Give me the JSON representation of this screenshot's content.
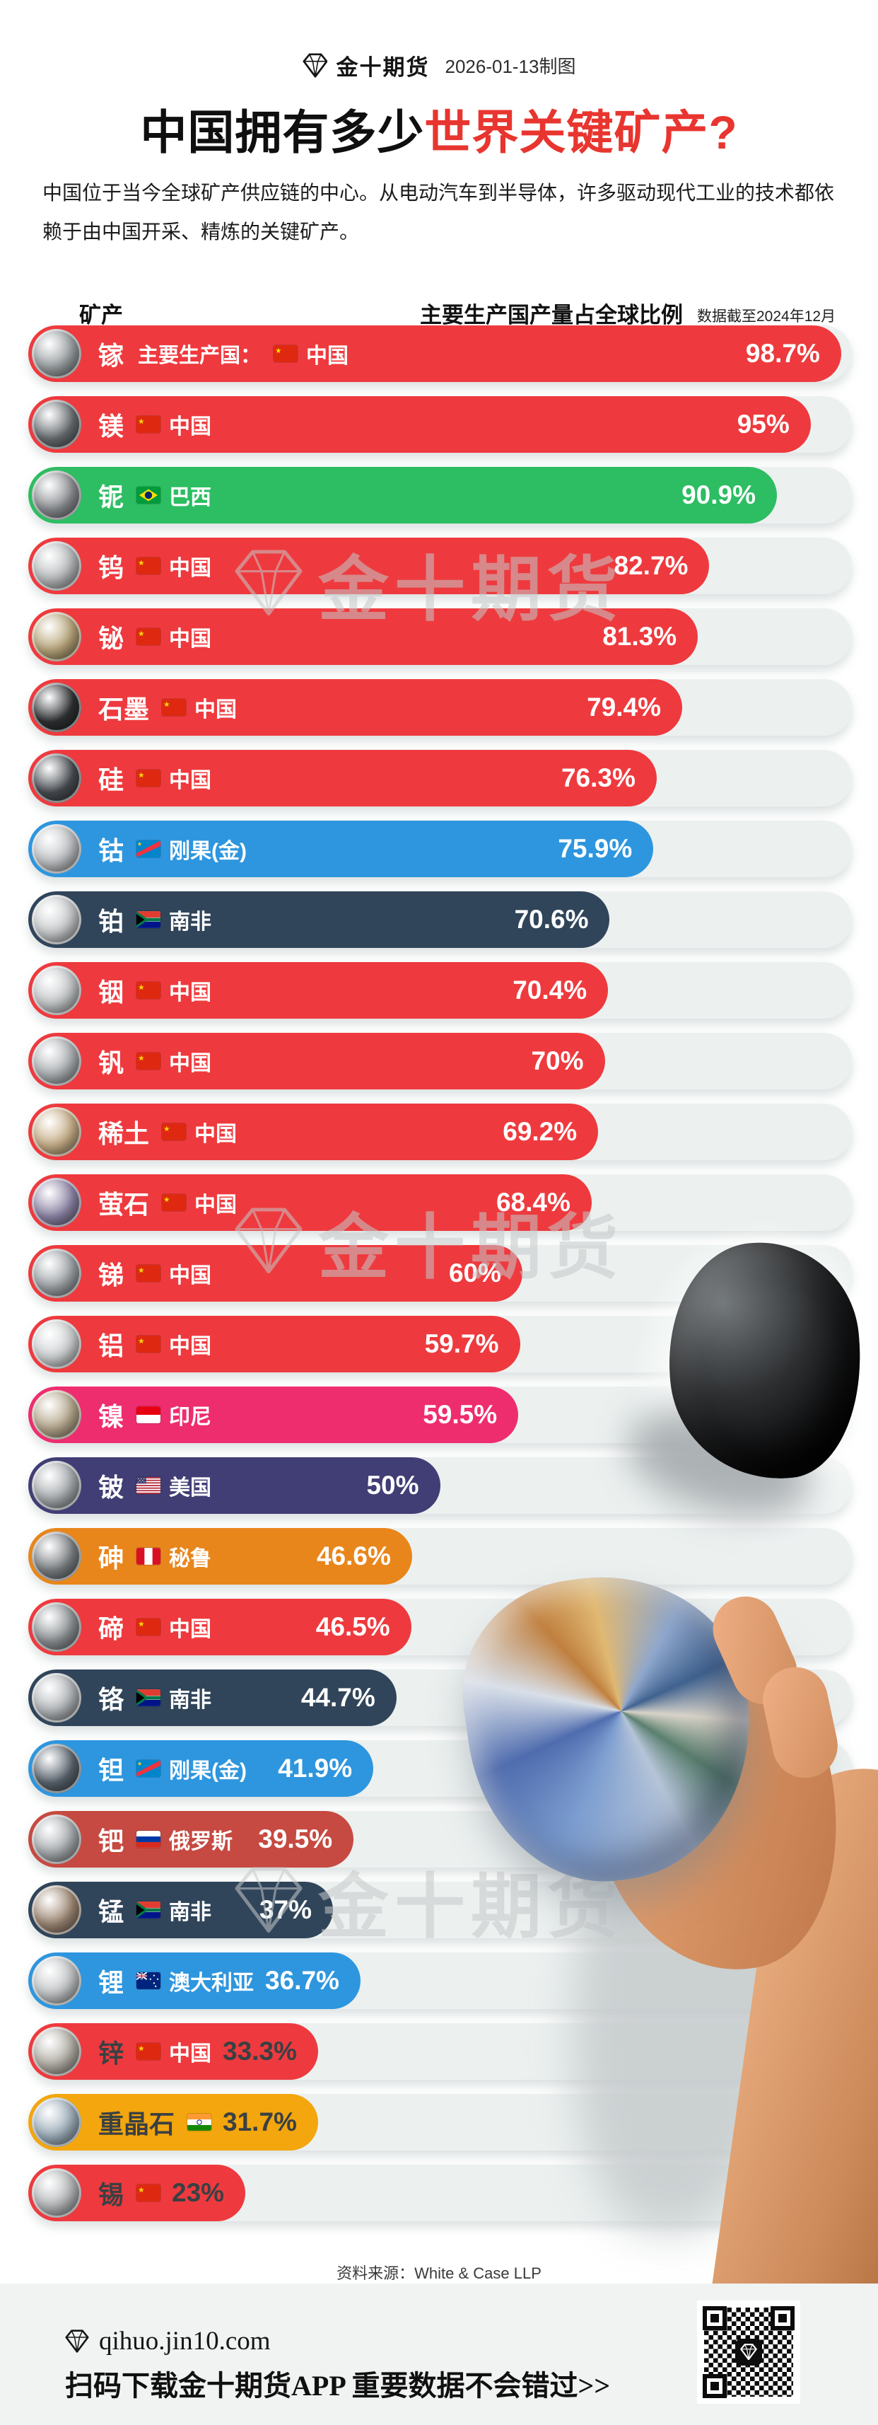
{
  "brand": {
    "name": "金十期货",
    "date_note": "2026-01-13制图"
  },
  "title": {
    "black": "中国拥有多少",
    "red": "世界关键矿产?"
  },
  "intro": "中国位于当今全球矿产供应链的中心。从电动汽车到半导体，许多驱动现代工业的技术都依赖于由中国开采、精炼的关键矿产。",
  "table": {
    "col_mineral": "矿产",
    "col_share": "主要生产国产量占全球比例",
    "col_note": "数据截至2024年12月"
  },
  "watermark": "金十期货",
  "source": {
    "label": "资料来源：",
    "value": "White & Case LLP"
  },
  "footer": {
    "site": "qihuo.jin10.com",
    "cta": "扫码下载金十期货APP 重要数据不会错过>>"
  },
  "colors": {
    "red": "#ee3a3e",
    "green": "#2dbd62",
    "blue": "#2e96de",
    "navy": "#30455a",
    "pink": "#ee2d6f",
    "indigo": "#413e75",
    "orange": "#e8861c",
    "brick": "#c64a41",
    "amber": "#f3a60d",
    "title_red": "#e8352f",
    "track": "#ecf1f0",
    "footer_bg": "#f1f2f2",
    "dark_text": "#3a4043"
  },
  "chart_data": {
    "type": "bar",
    "orientation": "horizontal",
    "title": "中国拥有多少世界关键矿产?",
    "xlabel": "主要生产国产量占全球比例",
    "ylabel": "矿产",
    "xlim": [
      0,
      100
    ],
    "as_of": "数据截至2024年12月",
    "source": "White & Case LLP",
    "legend": "none",
    "grid": false,
    "rows": [
      {
        "mineral": "镓",
        "prefix": "主要生产国：",
        "country": "中国",
        "flag": "cn",
        "value": 98.7,
        "label": "98.7%",
        "color": "red",
        "thumb": "#9aa0a2",
        "dark": false
      },
      {
        "mineral": "镁",
        "prefix": "",
        "country": "中国",
        "flag": "cn",
        "value": 95,
        "label": "95%",
        "color": "red",
        "thumb": "#6b7074",
        "dark": false
      },
      {
        "mineral": "铌",
        "prefix": "",
        "country": "巴西",
        "flag": "br",
        "value": 90.9,
        "label": "90.9%",
        "color": "green",
        "thumb": "#8d9094",
        "dark": false
      },
      {
        "mineral": "钨",
        "prefix": "",
        "country": "中国",
        "flag": "cn",
        "value": 82.7,
        "label": "82.7%",
        "color": "red",
        "thumb": "#b9bcbe",
        "dark": false
      },
      {
        "mineral": "铋",
        "prefix": "",
        "country": "中国",
        "flag": "cn",
        "value": 81.3,
        "label": "81.3%",
        "color": "red",
        "thumb": "#b9a67a",
        "dark": false
      },
      {
        "mineral": "石墨",
        "prefix": "",
        "country": "中国",
        "flag": "cn",
        "value": 79.4,
        "label": "79.4%",
        "color": "red",
        "thumb": "#2f3234",
        "dark": false
      },
      {
        "mineral": "硅",
        "prefix": "",
        "country": "中国",
        "flag": "cn",
        "value": 76.3,
        "label": "76.3%",
        "color": "red",
        "thumb": "#4a4f54",
        "dark": false
      },
      {
        "mineral": "钴",
        "prefix": "",
        "country": "刚果(金)",
        "flag": "cd",
        "value": 75.9,
        "label": "75.9%",
        "color": "blue",
        "thumb": "#c0c3c6",
        "dark": false
      },
      {
        "mineral": "铂",
        "prefix": "",
        "country": "南非",
        "flag": "za",
        "value": 70.6,
        "label": "70.6%",
        "color": "navy",
        "thumb": "#c9ccce",
        "dark": false
      },
      {
        "mineral": "铟",
        "prefix": "",
        "country": "中国",
        "flag": "cn",
        "value": 70.4,
        "label": "70.4%",
        "color": "red",
        "thumb": "#c6c9cb",
        "dark": false
      },
      {
        "mineral": "钒",
        "prefix": "",
        "country": "中国",
        "flag": "cn",
        "value": 70,
        "label": "70%",
        "color": "red",
        "thumb": "#aeb2b5",
        "dark": false
      },
      {
        "mineral": "稀土",
        "prefix": "",
        "country": "中国",
        "flag": "cn",
        "value": 69.2,
        "label": "69.2%",
        "color": "red",
        "thumb": "#c9b089",
        "dark": false
      },
      {
        "mineral": "萤石",
        "prefix": "",
        "country": "中国",
        "flag": "cn",
        "value": 68.4,
        "label": "68.4%",
        "color": "red",
        "thumb": "#8f86a8",
        "dark": false
      },
      {
        "mineral": "锑",
        "prefix": "",
        "country": "中国",
        "flag": "cn",
        "value": 60,
        "label": "60%",
        "color": "red",
        "thumb": "#9fa4a8",
        "dark": false
      },
      {
        "mineral": "铝",
        "prefix": "",
        "country": "中国",
        "flag": "cn",
        "value": 59.7,
        "label": "59.7%",
        "color": "red",
        "thumb": "#cfd2d4",
        "dark": false
      },
      {
        "mineral": "镍",
        "prefix": "",
        "country": "印尼",
        "flag": "id",
        "value": 59.5,
        "label": "59.5%",
        "color": "pink",
        "thumb": "#b7a98e",
        "dark": false
      },
      {
        "mineral": "铍",
        "prefix": "",
        "country": "美国",
        "flag": "us",
        "value": 50,
        "label": "50%",
        "color": "indigo",
        "thumb": "#a8acaf",
        "dark": false
      },
      {
        "mineral": "砷",
        "prefix": "",
        "country": "秘鲁",
        "flag": "pe",
        "value": 46.6,
        "label": "46.6%",
        "color": "orange",
        "thumb": "#7d8285",
        "dark": false
      },
      {
        "mineral": "碲",
        "prefix": "",
        "country": "中国",
        "flag": "cn",
        "value": 46.5,
        "label": "46.5%",
        "color": "red",
        "thumb": "#8e9396",
        "dark": false
      },
      {
        "mineral": "铬",
        "prefix": "",
        "country": "南非",
        "flag": "za",
        "value": 44.7,
        "label": "44.7%",
        "color": "navy",
        "thumb": "#b3b7ba",
        "dark": false
      },
      {
        "mineral": "钽",
        "prefix": "",
        "country": "刚果(金)",
        "flag": "cd",
        "value": 41.9,
        "label": "41.9%",
        "color": "blue",
        "thumb": "#5c6670",
        "dark": false
      },
      {
        "mineral": "钯",
        "prefix": "",
        "country": "俄罗斯",
        "flag": "ru",
        "value": 39.5,
        "label": "39.5%",
        "color": "brick",
        "thumb": "#a9adb0",
        "dark": false
      },
      {
        "mineral": "锰",
        "prefix": "",
        "country": "南非",
        "flag": "za",
        "value": 37,
        "label": "37%",
        "color": "navy",
        "thumb": "#a08a76",
        "dark": false
      },
      {
        "mineral": "锂",
        "prefix": "",
        "country": "澳大利亚",
        "flag": "au",
        "value": 36.7,
        "label": "36.7%",
        "color": "blue",
        "thumb": "#c4c7c9",
        "dark": false
      },
      {
        "mineral": "锌",
        "prefix": "",
        "country": "中国",
        "flag": "cn",
        "value": 33.3,
        "label": "33.3%",
        "color": "red",
        "thumb": "#b4b0a8",
        "dark": true
      },
      {
        "mineral": "重晶石",
        "prefix": "",
        "country": "",
        "flag": "in",
        "value": 31.7,
        "label": "31.7%",
        "color": "amber",
        "thumb": "#9fb0bd",
        "dark": true
      },
      {
        "mineral": "锡",
        "prefix": "",
        "country": "",
        "flag": "cn",
        "value": 23,
        "label": "23%",
        "color": "red",
        "thumb": "#b5b8ba",
        "dark": true
      }
    ]
  }
}
